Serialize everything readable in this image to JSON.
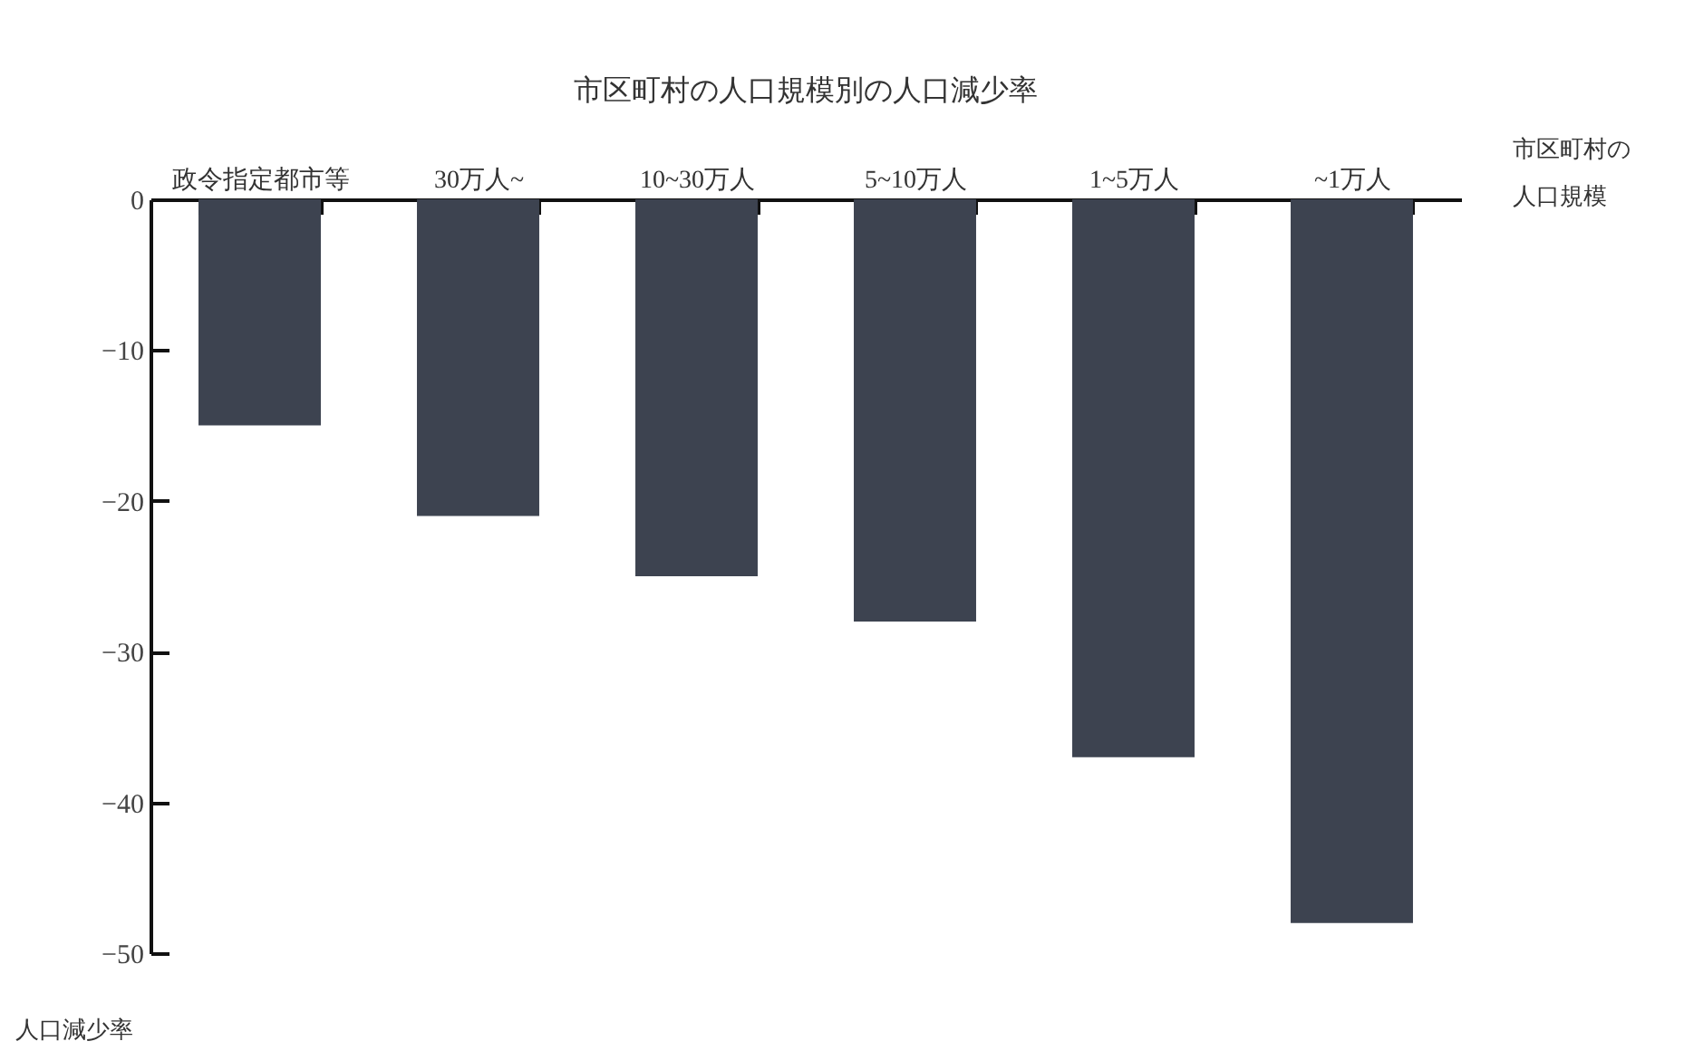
{
  "chart_data": {
    "type": "bar",
    "title": "市区町村の人口規模別の人口減少率",
    "xlabel": "市区町村の人口規模",
    "ylabel": "人口減少率",
    "categories": [
      "政令指定都市等",
      "30万人~",
      "10~30万人",
      "5~10万人",
      "1~5万人",
      "~1万人"
    ],
    "values": [
      -15,
      -21,
      -25,
      -28,
      -37,
      -48
    ],
    "color": "#3d4350",
    "ylim": [
      -50,
      0
    ],
    "yticks": [
      0,
      -10,
      -20,
      -30,
      -40,
      -50
    ],
    "grid": false
  }
}
